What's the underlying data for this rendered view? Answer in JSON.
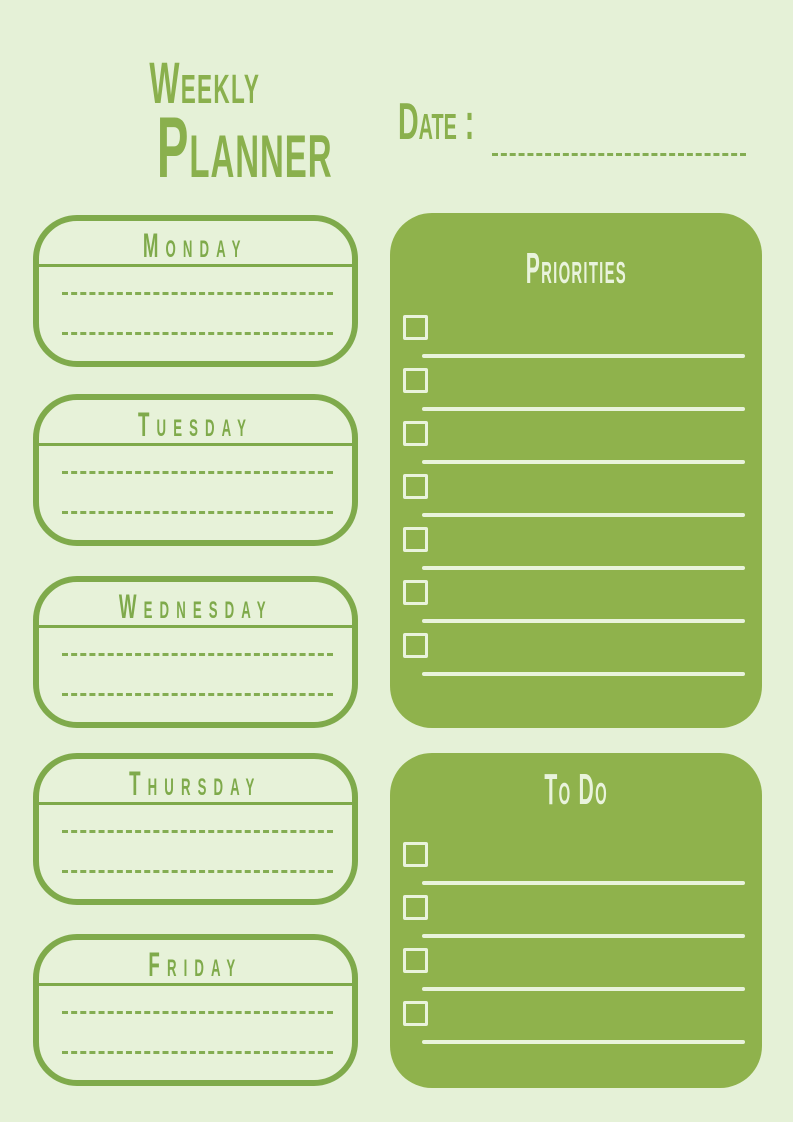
{
  "header": {
    "title_line1": "Weekly",
    "title_line2": "Planner",
    "date_label": "Date :",
    "date_value": ""
  },
  "days": [
    {
      "label": "Monday",
      "lines": [
        "",
        ""
      ]
    },
    {
      "label": "Tuesday",
      "lines": [
        "",
        ""
      ]
    },
    {
      "label": "Wednesday",
      "lines": [
        "",
        ""
      ]
    },
    {
      "label": "Thursday",
      "lines": [
        "",
        ""
      ]
    },
    {
      "label": "Friday",
      "lines": [
        "",
        ""
      ]
    }
  ],
  "priorities": {
    "title": "Priorities",
    "items": [
      "",
      "",
      "",
      "",
      "",
      "",
      ""
    ]
  },
  "todo": {
    "title": "To Do",
    "items": [
      "",
      "",
      "",
      ""
    ]
  },
  "colors": {
    "page_background": "#e5f1d7",
    "panel_green": "#8fb24c",
    "outline_green": "#7faa4b",
    "dash_green": "#84ad52",
    "title_green": "#8ab04d",
    "cream": "#e9f3dc"
  }
}
